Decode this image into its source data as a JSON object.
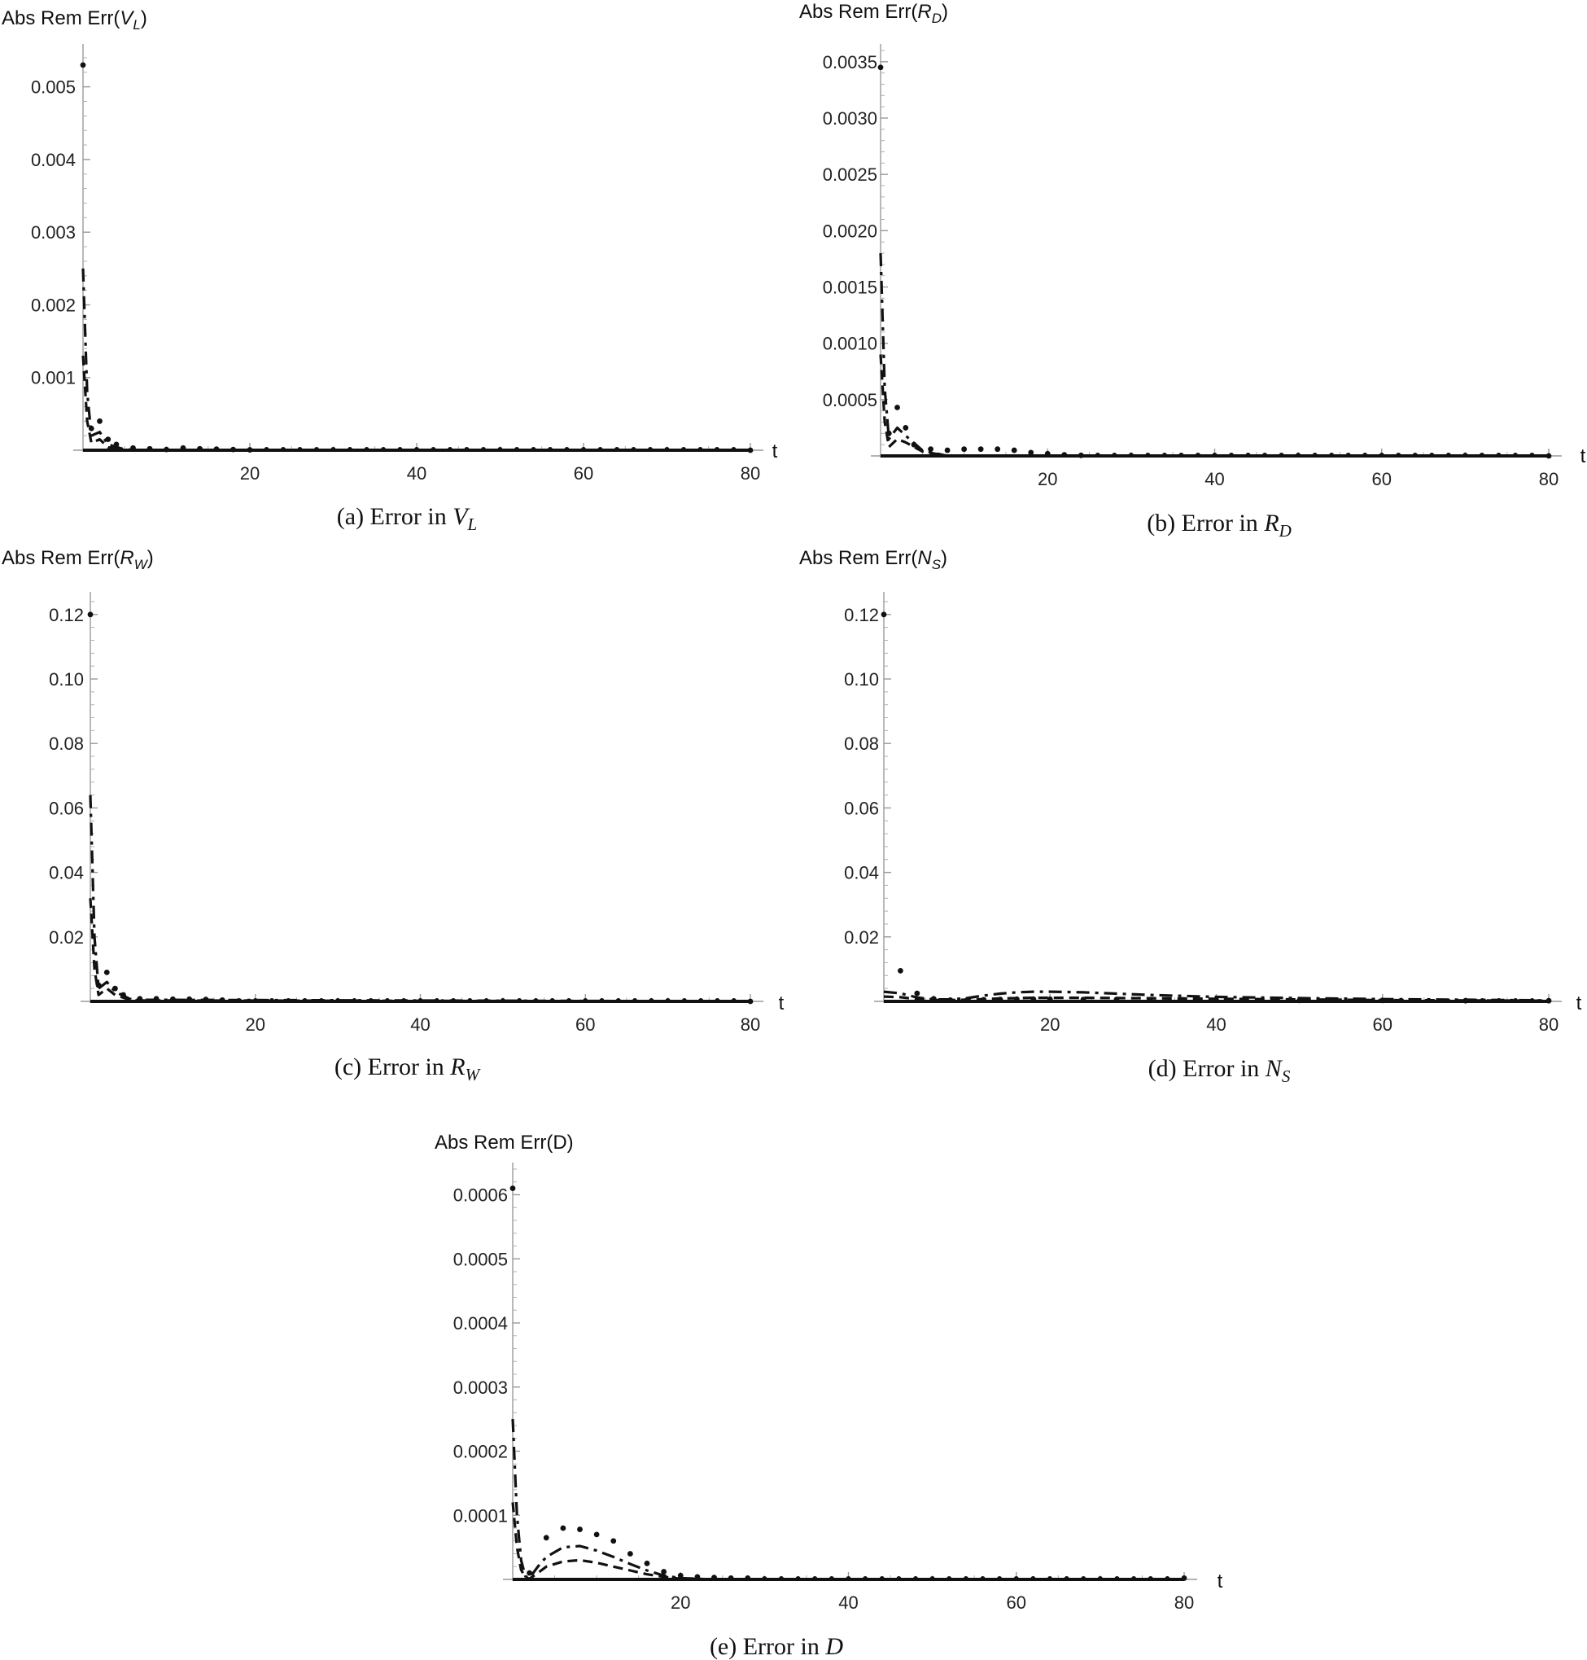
{
  "figure": {
    "series_styles": [
      {
        "name": "dotted",
        "style": "dotted"
      },
      {
        "name": "dash-dot",
        "style": "dash-dot"
      },
      {
        "name": "dashed",
        "style": "dashed"
      },
      {
        "name": "solid",
        "style": "solid"
      }
    ]
  },
  "chart_data": [
    {
      "id": "a",
      "type": "line",
      "ylabel_prefix": "Abs Rem Err(",
      "ylabel_var": "V",
      "ylabel_sub": "L",
      "ylabel_suffix": ")",
      "xlabel": "t",
      "caption_prefix": "(a) Error in ",
      "caption_var": "V",
      "caption_sub": "L",
      "xlim": [
        0,
        80
      ],
      "ylim": [
        0,
        0.0055
      ],
      "xticks": [
        20,
        40,
        60,
        80
      ],
      "xtick_labels": [
        "20",
        "40",
        "60",
        "80"
      ],
      "yticks": [
        0.001,
        0.002,
        0.003,
        0.004,
        0.005
      ],
      "ytick_labels": [
        "0.001",
        "0.002",
        "0.003",
        "0.004",
        "0.005"
      ],
      "series": [
        {
          "name": "dotted",
          "x": [
            0,
            1,
            2,
            3,
            4,
            6,
            8,
            10,
            12,
            14,
            16,
            18,
            20,
            80
          ],
          "y": [
            0.0053,
            0.0003,
            0.0004,
            0.00015,
            8e-05,
            3e-05,
            2e-05,
            1e-05,
            3e-05,
            2e-05,
            1.5e-05,
            1e-05,
            5e-06,
            0
          ]
        },
        {
          "name": "dash-dot",
          "x": [
            0,
            0.5,
            1,
            2,
            3,
            5,
            8,
            80
          ],
          "y": [
            0.0025,
            0.0008,
            0.0002,
            0.00025,
            8e-05,
            1e-05,
            0,
            0
          ]
        },
        {
          "name": "dashed",
          "x": [
            0,
            0.5,
            1,
            2,
            3,
            5,
            80
          ],
          "y": [
            0.0013,
            0.0004,
            0.0001,
            0.00015,
            4e-05,
            0,
            0
          ]
        },
        {
          "name": "solid",
          "x": [
            0,
            80
          ],
          "y": [
            0,
            0
          ]
        }
      ]
    },
    {
      "id": "b",
      "type": "line",
      "ylabel_prefix": "Abs Rem Err(",
      "ylabel_var": "R",
      "ylabel_sub": "D",
      "ylabel_suffix": ")",
      "xlabel": "t",
      "caption_prefix": "(b) Error in ",
      "caption_var": "R",
      "caption_sub": "D",
      "xlim": [
        0,
        80
      ],
      "ylim": [
        0,
        0.0036
      ],
      "xticks": [
        20,
        40,
        60,
        80
      ],
      "xtick_labels": [
        "20",
        "40",
        "60",
        "80"
      ],
      "yticks": [
        0.0005,
        0.001,
        0.0015,
        0.002,
        0.0025,
        0.003,
        0.0035
      ],
      "ytick_labels": [
        "0.0005",
        "0.0010",
        "0.0015",
        "0.0020",
        "0.0025",
        "0.0030",
        "0.0035"
      ],
      "series": [
        {
          "name": "dotted",
          "x": [
            0,
            1,
            2,
            3,
            4,
            6,
            8,
            10,
            12,
            14,
            16,
            18,
            20,
            22,
            24,
            80
          ],
          "y": [
            0.00345,
            0.0002,
            0.00043,
            0.00025,
            0.0001,
            6e-05,
            5e-05,
            6e-05,
            6e-05,
            6e-05,
            5e-05,
            3e-05,
            2e-05,
            1e-05,
            5e-06,
            0
          ]
        },
        {
          "name": "dash-dot",
          "x": [
            0,
            0.5,
            1,
            2,
            3,
            5,
            8,
            80
          ],
          "y": [
            0.0018,
            0.0006,
            0.00015,
            0.00025,
            0.00018,
            5e-05,
            0,
            0
          ]
        },
        {
          "name": "dashed",
          "x": [
            0,
            0.5,
            1,
            2,
            3,
            5,
            8,
            80
          ],
          "y": [
            0.0009,
            0.0003,
            8e-05,
            0.00015,
            0.00012,
            4e-05,
            0,
            0
          ]
        },
        {
          "name": "solid",
          "x": [
            0,
            80
          ],
          "y": [
            0,
            0
          ]
        }
      ]
    },
    {
      "id": "c",
      "type": "line",
      "ylabel_prefix": "Abs Rem Err(",
      "ylabel_var": "R",
      "ylabel_sub": "W",
      "ylabel_suffix": ")",
      "xlabel": "t",
      "caption_prefix": "(c) Error in ",
      "caption_var": "R",
      "caption_sub": "W",
      "xlim": [
        0,
        80
      ],
      "ylim": [
        0,
        0.125
      ],
      "xticks": [
        20,
        40,
        60,
        80
      ],
      "xtick_labels": [
        "20",
        "40",
        "60",
        "80"
      ],
      "yticks": [
        0.02,
        0.04,
        0.06,
        0.08,
        0.1,
        0.12
      ],
      "ytick_labels": [
        "0.02",
        "0.04",
        "0.06",
        "0.08",
        "0.10",
        "0.12"
      ],
      "series": [
        {
          "name": "dotted",
          "x": [
            0,
            1,
            2,
            3,
            4,
            6,
            8,
            10,
            12,
            14,
            16,
            80
          ],
          "y": [
            0.12,
            0.005,
            0.009,
            0.004,
            0.002,
            0.0008,
            0.0008,
            0.0007,
            0.0007,
            0.0006,
            0.0004,
            0
          ]
        },
        {
          "name": "dash-dot",
          "x": [
            0,
            0.5,
            1,
            2,
            3,
            5,
            80
          ],
          "y": [
            0.064,
            0.02,
            0.004,
            0.006,
            0.003,
            0.0005,
            0
          ]
        },
        {
          "name": "dashed",
          "x": [
            0,
            0.5,
            1,
            2,
            3,
            5,
            80
          ],
          "y": [
            0.032,
            0.01,
            0.002,
            0.004,
            0.002,
            0.0003,
            0
          ]
        },
        {
          "name": "solid",
          "x": [
            0,
            80
          ],
          "y": [
            0,
            0
          ]
        }
      ]
    },
    {
      "id": "d",
      "type": "line",
      "ylabel_prefix": "Abs Rem Err(",
      "ylabel_var": "N",
      "ylabel_sub": "S",
      "ylabel_suffix": ")",
      "xlabel": "t",
      "caption_prefix": "(d) Error in ",
      "caption_var": "N",
      "caption_sub": "S",
      "xlim": [
        0,
        80
      ],
      "ylim": [
        0,
        0.125
      ],
      "xticks": [
        20,
        40,
        60,
        80
      ],
      "xtick_labels": [
        "20",
        "40",
        "60",
        "80"
      ],
      "yticks": [
        0.02,
        0.04,
        0.06,
        0.08,
        0.1,
        0.12
      ],
      "ytick_labels": [
        "0.02",
        "0.04",
        "0.06",
        "0.08",
        "0.10",
        "0.12"
      ],
      "series": [
        {
          "name": "dotted",
          "x": [
            0,
            2,
            4,
            6,
            8,
            10,
            12,
            14,
            16,
            18,
            20,
            24,
            28,
            32,
            36,
            40,
            50,
            60,
            70,
            80
          ],
          "y": [
            0.12,
            0.0095,
            0.0025,
            0.0008,
            0.0004,
            0.0004,
            0.0005,
            0.0006,
            0.0007,
            0.0007,
            0.0007,
            0.0006,
            0.0006,
            0.0005,
            0.0005,
            0.0004,
            0.0003,
            0.0003,
            0.0002,
            0.0002
          ]
        },
        {
          "name": "dash-dot",
          "x": [
            0,
            2,
            4,
            6,
            8,
            10,
            12,
            14,
            16,
            18,
            20,
            24,
            28,
            32,
            36,
            40,
            50,
            60,
            70,
            80
          ],
          "y": [
            0.003,
            0.0025,
            0.0012,
            0.0006,
            0.0006,
            0.001,
            0.0018,
            0.0024,
            0.0028,
            0.003,
            0.003,
            0.0028,
            0.0024,
            0.002,
            0.0017,
            0.0014,
            0.001,
            0.0007,
            0.0005,
            0.0003
          ]
        },
        {
          "name": "dashed",
          "x": [
            0,
            2,
            4,
            6,
            8,
            10,
            14,
            18,
            20,
            24,
            30,
            40,
            50,
            60,
            70,
            80
          ],
          "y": [
            0.0015,
            0.0013,
            0.0007,
            0.0004,
            0.0004,
            0.0005,
            0.0009,
            0.0011,
            0.0011,
            0.0011,
            0.001,
            0.0008,
            0.0006,
            0.0004,
            0.0003,
            0.0002
          ]
        },
        {
          "name": "solid",
          "x": [
            0,
            80
          ],
          "y": [
            0,
            0
          ]
        }
      ]
    },
    {
      "id": "e",
      "type": "line",
      "ylabel_prefix": "Abs Rem Err(D)",
      "ylabel_var": "",
      "ylabel_sub": "",
      "ylabel_suffix": "",
      "xlabel": "t",
      "caption_prefix": "(e) Error in ",
      "caption_var": "D",
      "caption_sub": "",
      "xlim": [
        0,
        80
      ],
      "ylim": [
        0,
        0.00064
      ],
      "xticks": [
        20,
        40,
        60,
        80
      ],
      "xtick_labels": [
        "20",
        "40",
        "60",
        "80"
      ],
      "yticks": [
        0.0001,
        0.0002,
        0.0003,
        0.0004,
        0.0005,
        0.0006
      ],
      "ytick_labels": [
        "0.0001",
        "0.0002",
        "0.0003",
        "0.0004",
        "0.0005",
        "0.0006"
      ],
      "series": [
        {
          "name": "dotted",
          "x": [
            0,
            2,
            4,
            6,
            8,
            10,
            12,
            14,
            16,
            18,
            20,
            22,
            24,
            26,
            28,
            80
          ],
          "y": [
            0.00061,
            1e-05,
            6.5e-05,
            8e-05,
            7.8e-05,
            7e-05,
            6e-05,
            4e-05,
            2.5e-05,
            1.2e-05,
            6e-06,
            4e-06,
            3e-06,
            2e-06,
            2e-06,
            2e-06
          ]
        },
        {
          "name": "dash-dot",
          "x": [
            0,
            0.5,
            1,
            1.5,
            2,
            3,
            4,
            6,
            8,
            10,
            12,
            14,
            16,
            18,
            20,
            22,
            24,
            80
          ],
          "y": [
            0.00025,
            0.0001,
            3e-05,
            5e-06,
            2e-06,
            2e-05,
            3.5e-05,
            5e-05,
            5.2e-05,
            4.5e-05,
            3.5e-05,
            2.4e-05,
            1.4e-05,
            6e-06,
            2e-06,
            1e-06,
            0,
            0
          ]
        },
        {
          "name": "dashed",
          "x": [
            0,
            0.5,
            1,
            1.5,
            2,
            3,
            4,
            6,
            8,
            10,
            12,
            14,
            16,
            18,
            20,
            22,
            80
          ],
          "y": [
            0.00012,
            5e-05,
            1.5e-05,
            3e-06,
            1e-06,
            1e-05,
            2e-05,
            2.8e-05,
            3e-05,
            2.6e-05,
            2e-05,
            1.4e-05,
            8e-06,
            4e-06,
            1e-06,
            0,
            0
          ]
        },
        {
          "name": "solid",
          "x": [
            0,
            80
          ],
          "y": [
            0,
            0
          ]
        }
      ]
    }
  ]
}
